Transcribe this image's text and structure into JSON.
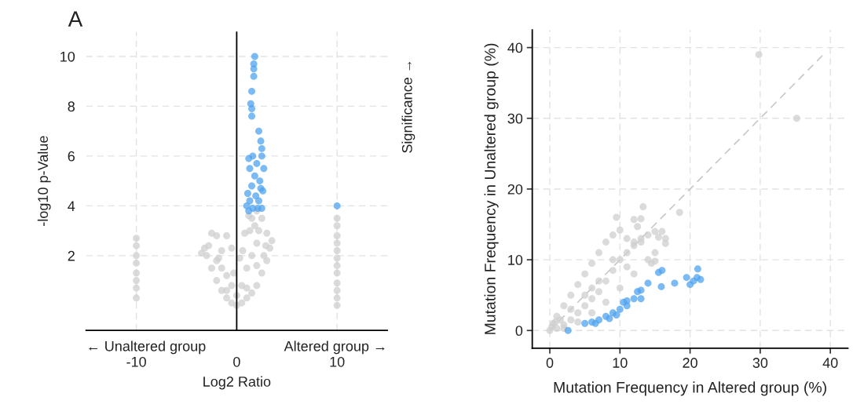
{
  "chart_data": [
    {
      "type": "scatter",
      "xlabel": "Log2 Ratio",
      "ylabel": "-log10 p-Value",
      "xlim": [
        -15,
        15
      ],
      "ylim": [
        -1,
        11
      ],
      "xticks": [
        -10,
        0,
        10
      ],
      "yticks": [
        2,
        4,
        6,
        8,
        10
      ],
      "grid": true,
      "marker": "circle",
      "legend": false,
      "ref_lines": [
        {
          "axis": "x",
          "value": 0,
          "color": "#000000"
        }
      ],
      "annotations": [
        "A",
        "← Unaltered group",
        "Altered group →",
        "Significance →"
      ],
      "series": [
        {
          "color": "#cfcfcf",
          "x": [
            -10,
            -10,
            -10,
            -10,
            -10,
            -10,
            -10,
            -10,
            10,
            10,
            10,
            10,
            10,
            10,
            10,
            10,
            10,
            10,
            10,
            10,
            0,
            -0.5,
            0.5,
            -1,
            1,
            -1.5,
            1.5,
            -2,
            2,
            -2.5,
            2.5,
            -3,
            3,
            -3.2,
            3.3,
            3.5,
            -3.5,
            -2.5,
            -2,
            -1.5,
            -1,
            -0.5,
            -1.5,
            -1,
            -0.5,
            0.5,
            1,
            1.5,
            2,
            1.3,
            1.5,
            2,
            1.2,
            2.5,
            2.2,
            3,
            0.8,
            0.3,
            -0.3,
            -2,
            -1,
            0,
            1,
            2,
            2.7,
            1.8,
            -2.8,
            -1.8,
            2.9,
            0.6
          ],
          "values": [
            2.7,
            2.4,
            2.0,
            1.7,
            1.3,
            1.0,
            0.7,
            0.3,
            3.5,
            3.2,
            2.8,
            2.5,
            2.2,
            1.9,
            1.6,
            1.3,
            0.9,
            0.6,
            0.3,
            0.0,
            0.0,
            0.1,
            0.1,
            0.3,
            0.3,
            0.6,
            0.5,
            1.0,
            0.8,
            1.5,
            1.3,
            2.0,
            1.8,
            2.3,
            2.3,
            2.6,
            2.1,
            2.9,
            2.8,
            2.2,
            2.8,
            2.3,
            1.5,
            1.2,
            0.8,
            0.8,
            1.5,
            2.0,
            2.5,
            3.0,
            3.5,
            3.8,
            3.6,
            3.5,
            3.0,
            2.9,
            2.9,
            1.9,
            1.3,
            1.8,
            0.6,
            0.4,
            0.7,
            1.6,
            2.0,
            3.2,
            2.4,
            1.9,
            2.4,
            2.2
          ]
        },
        {
          "color": "#4fa3ef",
          "x": [
            1.8,
            1.7,
            1.7,
            1.7,
            1.5,
            1.5,
            1.4,
            1.5,
            2.2,
            2.4,
            2.5,
            2.5,
            1.2,
            1.6,
            2.0,
            2.7,
            1.3,
            1.8,
            2.3,
            1.5,
            2.4,
            1.1,
            1.9,
            2.6,
            1.3,
            2.2,
            1.0,
            1.6,
            2.1,
            2.5,
            1.2,
            10
          ],
          "values": [
            10.0,
            9.7,
            9.5,
            9.2,
            8.6,
            7.9,
            8.1,
            7.6,
            7.0,
            6.6,
            6.3,
            6.0,
            5.9,
            6.0,
            5.7,
            5.5,
            5.5,
            5.2,
            5.0,
            4.8,
            4.7,
            4.5,
            4.4,
            4.6,
            4.2,
            4.2,
            4.0,
            3.9,
            3.9,
            3.9,
            3.8,
            4.0
          ]
        }
      ]
    },
    {
      "type": "scatter",
      "xlabel": "Mutation Frequency in Altered group (%)",
      "ylabel": "Mutation Frequency in Unaltered group (%)",
      "xlim": [
        -2.5,
        42.5
      ],
      "ylim": [
        -2.5,
        42.5
      ],
      "xticks": [
        0,
        10,
        20,
        30,
        40
      ],
      "yticks": [
        0,
        10,
        20,
        30,
        40
      ],
      "grid": true,
      "marker": "circle",
      "legend": false,
      "series": [
        {
          "type": "line",
          "color": "#c8c8c8",
          "line_style": "dashed",
          "marker": "none",
          "x": [
            0,
            39
          ],
          "values": [
            0,
            39
          ]
        },
        {
          "color": "#cfcfcf",
          "x": [
            0,
            1,
            2,
            3,
            4,
            5,
            6,
            7,
            8,
            9,
            10,
            11,
            12,
            13,
            14,
            15,
            16,
            16.5,
            15,
            14,
            12,
            10,
            8,
            6,
            4,
            2,
            1,
            2,
            3,
            4,
            5,
            6,
            7,
            8,
            9,
            10,
            11,
            12,
            13,
            9.5,
            12,
            12.5,
            13,
            13.3,
            18.5,
            29.8,
            35.2,
            15.5,
            16.5,
            0.5,
            1.5,
            5,
            7,
            15,
            14.5,
            0.3,
            0.8,
            3,
            6,
            9,
            11
          ],
          "values": [
            0,
            0.3,
            0.8,
            1.5,
            2.5,
            3.5,
            4.5,
            5.5,
            7,
            8.5,
            10,
            11,
            12,
            13,
            13.5,
            14,
            14,
            13,
            11,
            10,
            8,
            6,
            4,
            2.5,
            1.2,
            0.3,
            2,
            3.5,
            5,
            6.5,
            8,
            9.5,
            11,
            12.5,
            13.5,
            14.2,
            13,
            12.5,
            12.5,
            16,
            15.7,
            14.7,
            15.8,
            17.5,
            16.7,
            39,
            30,
            13.2,
            12.3,
            1,
            1.5,
            5,
            7,
            9.8,
            9.5,
            0.5,
            1.2,
            3,
            6,
            10,
            9
          ]
        },
        {
          "color": "#4fa3ef",
          "x": [
            2.6,
            5,
            6,
            7,
            8,
            9,
            10,
            10.5,
            11,
            12,
            12.5,
            13,
            14,
            15.5,
            16,
            15.9,
            17.8,
            19.5,
            20,
            20.5,
            21.1,
            21,
            21.5,
            6.5,
            8.5,
            9.5,
            11,
            13
          ],
          "values": [
            0,
            1,
            1.2,
            1.5,
            2,
            2.5,
            3,
            4,
            3.5,
            4.5,
            5.5,
            5.7,
            6.7,
            8.2,
            8.5,
            6.2,
            6.7,
            7.5,
            6.5,
            7,
            8.7,
            7.5,
            7.2,
            1,
            1.7,
            2.2,
            4.2,
            4.5
          ]
        }
      ]
    }
  ]
}
